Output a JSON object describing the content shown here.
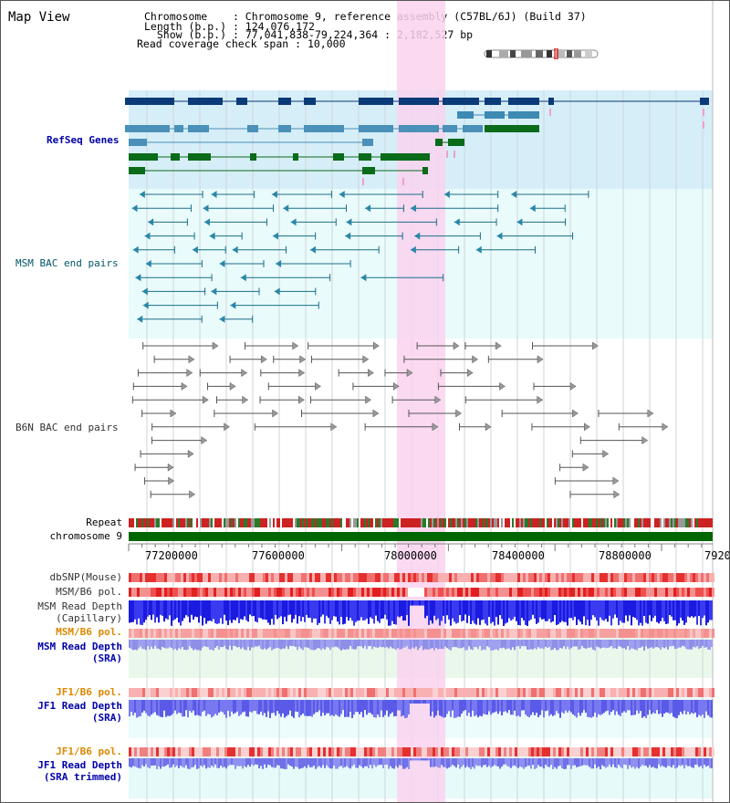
{
  "header": {
    "title": "Map View",
    "chromosome_key": "Chromosome",
    "chromosome_value": "Chromosome 9, reference assembly (C57BL/6J) (Build 37)",
    "length_key": "Length (b.p.)",
    "length_value": "124,076,172",
    "show_key": "Show (b.p.)",
    "show_value": "77,041,838-79,224,364 : 2,182,527 bp",
    "coverage_key": "Read coverage check span",
    "coverage_value": "10,000"
  },
  "tracks": {
    "refseq": "RefSeq Genes",
    "msm_bac": "MSM BAC end pairs",
    "b6n_bac": "B6N BAC end pairs",
    "repeat": "Repeat",
    "chromosome": "chromosome 9",
    "dbsnp": "dbSNP(Mouse)",
    "msm_b6_pol": "MSM/B6 pol.",
    "msm_read_depth_cap_1": "MSM Read Depth",
    "msm_read_depth_cap_2": "(Capillary)",
    "msm_b6_pol_2": "MSM/B6 pol.",
    "msm_read_depth_sra_1": "MSM Read Depth",
    "msm_read_depth_sra_2": "(SRA)",
    "jf1_b6_pol": "JF1/B6 pol.",
    "jf1_read_depth_sra_1": "JF1 Read Depth",
    "jf1_read_depth_sra_2": "(SRA)",
    "jf1_b6_pol_2": "JF1/B6 pol.",
    "jf1_read_depth_trim_1": "JF1 Read Depth",
    "jf1_read_depth_trim_2": "(SRA trimmed)"
  },
  "axis": {
    "ticks": [
      "77200000",
      "77600000",
      "78000000",
      "78400000",
      "78800000",
      "7920"
    ]
  },
  "colors": {
    "refseq_label": "#0000aa",
    "msm_label": "#005566",
    "orange_label": "#dd8800",
    "blue_label": "#0000aa",
    "highlight": "#f9d2ee",
    "chromosome_bar": "#006600"
  }
}
